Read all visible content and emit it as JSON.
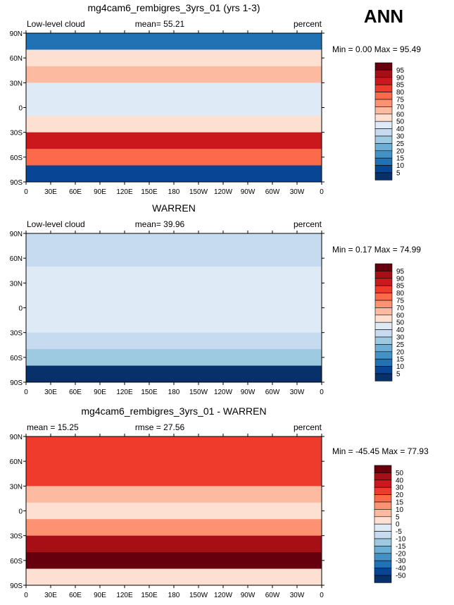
{
  "season": "ANN",
  "chart_data": [
    {
      "type": "heatmap",
      "title": "mg4cam6_rembigres_3yrs_01 (yrs 1-3)",
      "left_label": "Low-level cloud",
      "center_label": "mean=  55.21",
      "right_label": "percent",
      "min_max": "Min =    0.00 Max =   95.49",
      "xticks": [
        "0",
        "30E",
        "60E",
        "90E",
        "120E",
        "150E",
        "180",
        "150W",
        "120W",
        "90W",
        "60W",
        "30W",
        "0"
      ],
      "yticks": [
        "90N",
        "60N",
        "30N",
        "0",
        "30S",
        "60S",
        "90S"
      ],
      "colorbar_levels": [
        "95",
        "90",
        "85",
        "80",
        "75",
        "70",
        "60",
        "50",
        "40",
        "30",
        "25",
        "20",
        "15",
        "10",
        "5"
      ],
      "colors": [
        "#67000d",
        "#a50f15",
        "#cb181d",
        "#ef3b2c",
        "#fb6a4a",
        "#fc9272",
        "#fcbba1",
        "#fee0d2",
        "#deebf7",
        "#c6dbef",
        "#9ecae1",
        "#6baed6",
        "#4292c6",
        "#2171b5",
        "#084594",
        "#08306b"
      ],
      "lat_values": [
        80,
        60,
        40,
        20,
        0,
        -20,
        -40,
        -60,
        -80
      ],
      "zonal_mean_percent": [
        12,
        55,
        62,
        45,
        40,
        50,
        85,
        78,
        8
      ]
    },
    {
      "type": "heatmap",
      "title": "WARREN",
      "left_label": "Low-level cloud",
      "center_label": "mean=  39.96",
      "right_label": "percent",
      "min_max": "Min =    0.17 Max =   74.99",
      "xticks": [
        "0",
        "30E",
        "60E",
        "90E",
        "120E",
        "150E",
        "180",
        "150W",
        "120W",
        "90W",
        "60W",
        "30W",
        "0"
      ],
      "yticks": [
        "90N",
        "60N",
        "30N",
        "0",
        "30S",
        "60S",
        "90S"
      ],
      "colorbar_levels": [
        "95",
        "90",
        "85",
        "80",
        "75",
        "70",
        "60",
        "50",
        "40",
        "30",
        "25",
        "20",
        "15",
        "10",
        "5"
      ],
      "colors": [
        "#67000d",
        "#a50f15",
        "#cb181d",
        "#ef3b2c",
        "#fb6a4a",
        "#fc9272",
        "#fcbba1",
        "#fee0d2",
        "#deebf7",
        "#c6dbef",
        "#9ecae1",
        "#6baed6",
        "#4292c6",
        "#2171b5",
        "#084594",
        "#08306b"
      ],
      "lat_values": [
        80,
        60,
        40,
        20,
        0,
        -20,
        -40,
        -60,
        -80
      ],
      "zonal_mean_percent": [
        30,
        35,
        40,
        45,
        40,
        42,
        30,
        25,
        0
      ]
    },
    {
      "type": "heatmap",
      "title": "mg4cam6_rembigres_3yrs_01 - WARREN",
      "left_label": "mean =   15.25",
      "center_label": "rmse =   27.56",
      "right_label": "percent",
      "min_max": "Min = -45.45 Max =   77.93",
      "xticks": [
        "0",
        "30E",
        "60E",
        "90E",
        "120E",
        "150E",
        "180",
        "150W",
        "120W",
        "90W",
        "60W",
        "30W",
        "0"
      ],
      "yticks": [
        "90N",
        "60N",
        "30N",
        "0",
        "30S",
        "60S",
        "90S"
      ],
      "colorbar_levels": [
        "50",
        "40",
        "30",
        "20",
        "15",
        "10",
        "5",
        "0",
        "-5",
        "-10",
        "-15",
        "-20",
        "-30",
        "-40",
        "-50"
      ],
      "colors": [
        "#67000d",
        "#a50f15",
        "#cb181d",
        "#ef3b2c",
        "#fb6a4a",
        "#fc9272",
        "#fcbba1",
        "#fee0d2",
        "#deebf7",
        "#c6dbef",
        "#9ecae1",
        "#6baed6",
        "#4292c6",
        "#2171b5",
        "#084594",
        "#08306b"
      ],
      "lat_values": [
        80,
        60,
        40,
        20,
        0,
        -20,
        -40,
        -60,
        -80
      ],
      "zonal_mean_percent": [
        25,
        25,
        25,
        5,
        3,
        10,
        45,
        50,
        0
      ]
    }
  ]
}
